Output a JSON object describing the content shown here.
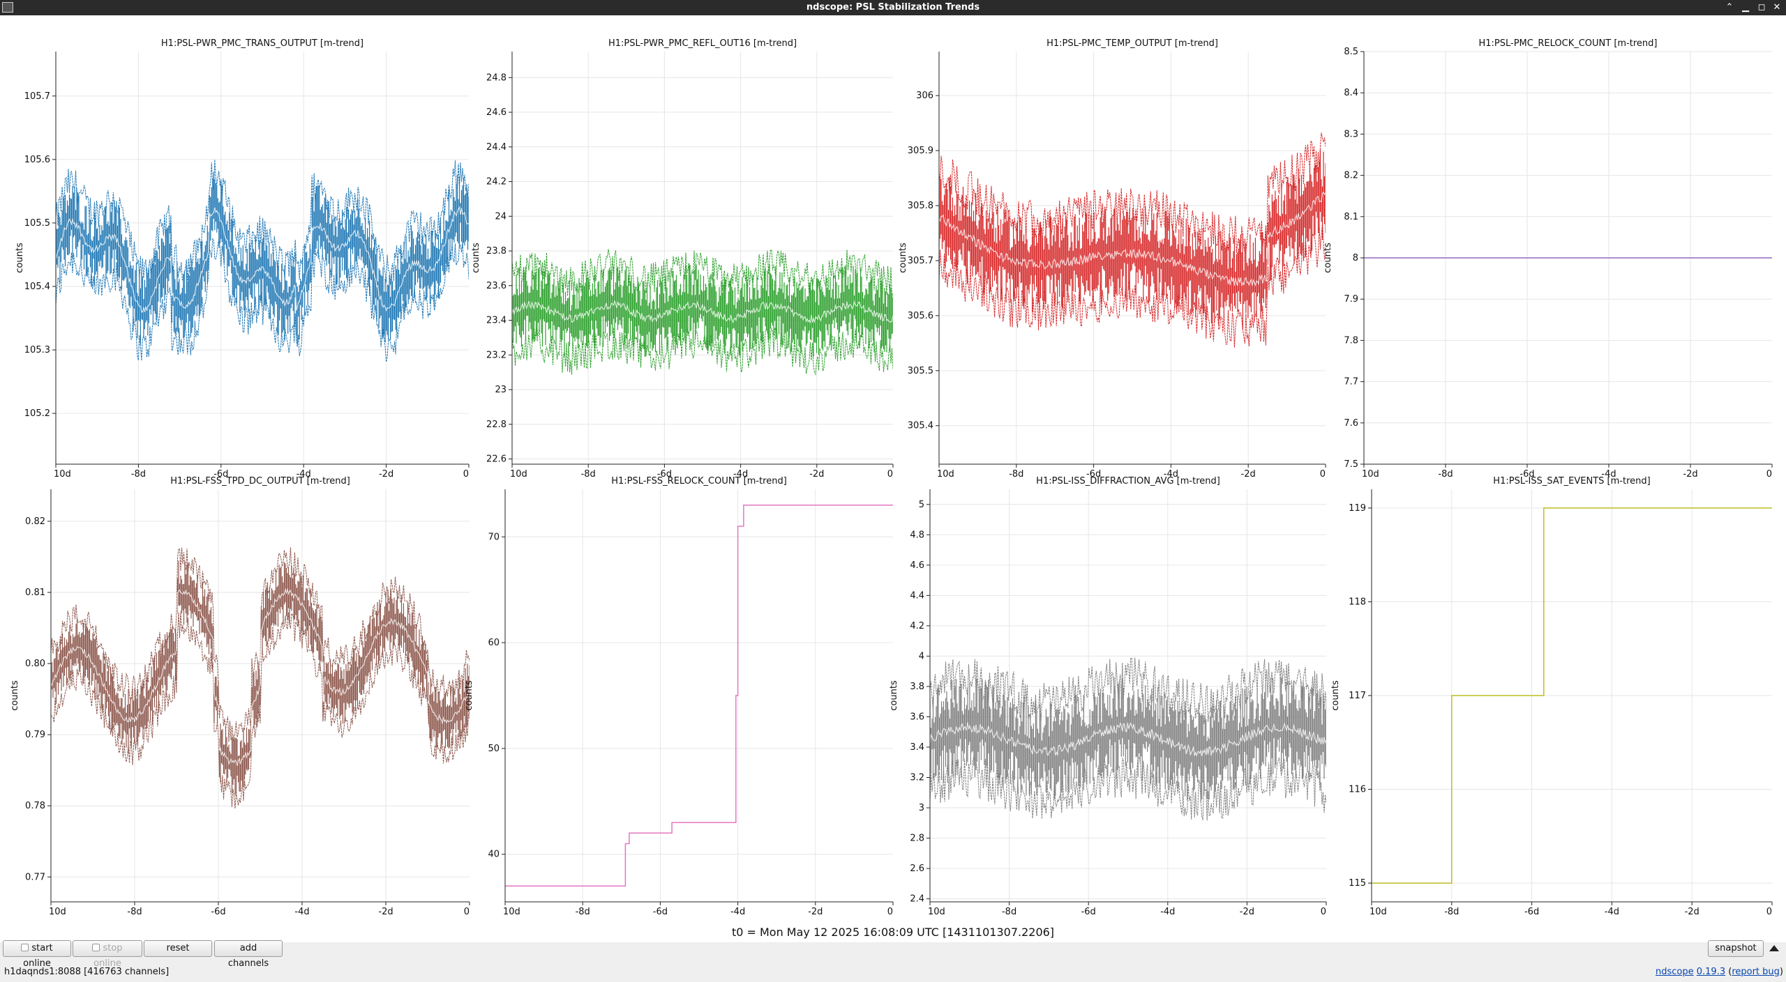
{
  "window": {
    "title": "ndscope: PSL Stabilization Trends",
    "controls": [
      "minimize-icon",
      "maximize-icon",
      "restore-icon",
      "close-icon"
    ]
  },
  "colors": {
    "blue": "#1f77b4",
    "green": "#2ca02c",
    "red": "#d62728",
    "purple": "#9467bd",
    "brown": "#8c564b",
    "pink": "#e377c2",
    "gray": "#7f7f7f",
    "olive": "#bcbd22"
  },
  "ylabel": "counts",
  "plots": [
    {
      "title": "H1:PSL-PWR_PMC_TRANS_OUTPUT [m-trend]",
      "color": "blue",
      "type": "band",
      "xticks": [
        "10d",
        "-8d",
        "-6d",
        "-4d",
        "-2d",
        "0"
      ],
      "xlim": [
        -10,
        0
      ],
      "ylim": [
        105.12,
        105.77
      ],
      "yticks": [
        "105.2",
        "105.3",
        "105.4",
        "105.5",
        "105.6",
        "105.7"
      ],
      "ytickvals": [
        105.2,
        105.3,
        105.4,
        105.5,
        105.6,
        105.7
      ]
    },
    {
      "title": "H1:PSL-PWR_PMC_REFL_OUT16 [m-trend]",
      "color": "green",
      "type": "band",
      "xticks": [
        "10d",
        "-8d",
        "-6d",
        "-4d",
        "-2d",
        "0"
      ],
      "xlim": [
        -10,
        0
      ],
      "ylim": [
        22.57,
        24.95
      ],
      "yticks": [
        "22.6",
        "22.8",
        "23",
        "23.2",
        "23.4",
        "23.6",
        "23.8",
        "24",
        "24.2",
        "24.4",
        "24.6",
        "24.8"
      ],
      "ytickvals": [
        22.6,
        22.8,
        23,
        23.2,
        23.4,
        23.6,
        23.8,
        24,
        24.2,
        24.4,
        24.6,
        24.8
      ]
    },
    {
      "title": "H1:PSL-PMC_TEMP_OUTPUT [m-trend]",
      "color": "red",
      "type": "band",
      "xticks": [
        "10d",
        "-8d",
        "-6d",
        "-4d",
        "-2d",
        "0"
      ],
      "xlim": [
        -10,
        0
      ],
      "ylim": [
        305.33,
        306.08
      ],
      "yticks": [
        "305.4",
        "305.5",
        "305.6",
        "305.7",
        "305.8",
        "305.9",
        "306"
      ],
      "ytickvals": [
        305.4,
        305.5,
        305.6,
        305.7,
        305.8,
        305.9,
        306
      ]
    },
    {
      "title": "H1:PSL-PMC_RELOCK_COUNT [m-trend]",
      "color": "purple",
      "type": "step",
      "xticks": [
        "10d",
        "-8d",
        "-6d",
        "-4d",
        "-2d",
        "0"
      ],
      "xlim": [
        -10,
        0
      ],
      "ylim": [
        7.5,
        8.5
      ],
      "yticks": [
        "7.5",
        "7.6",
        "7.7",
        "7.8",
        "7.9",
        "8",
        "8.1",
        "8.2",
        "8.3",
        "8.4",
        "8.5"
      ],
      "ytickvals": [
        7.5,
        7.6,
        7.7,
        7.8,
        7.9,
        8,
        8.1,
        8.2,
        8.3,
        8.4,
        8.5
      ],
      "steps": [
        [
          -10,
          8
        ],
        [
          0,
          8
        ]
      ]
    },
    {
      "title": "H1:PSL-FSS_TPD_DC_OUTPUT [m-trend]",
      "color": "brown",
      "type": "band",
      "xticks": [
        "10d",
        "-8d",
        "-6d",
        "-4d",
        "-2d",
        "0"
      ],
      "xlim": [
        -10,
        0
      ],
      "ylim": [
        0.7665,
        0.8245
      ],
      "yticks": [
        "0.77",
        "0.78",
        "0.79",
        "0.80",
        "0.81",
        "0.82"
      ],
      "ytickvals": [
        0.77,
        0.78,
        0.79,
        0.8,
        0.81,
        0.82
      ]
    },
    {
      "title": "H1:PSL-FSS_RELOCK_COUNT [m-trend]",
      "color": "pink",
      "type": "step",
      "xticks": [
        "10d",
        "-8d",
        "-6d",
        "-4d",
        "-2d",
        "0"
      ],
      "xlim": [
        -10,
        0
      ],
      "ylim": [
        35.5,
        74.5
      ],
      "yticks": [
        "40",
        "50",
        "60",
        "70"
      ],
      "ytickvals": [
        40,
        50,
        60,
        70
      ],
      "steps": [
        [
          -10,
          37
        ],
        [
          -6.9,
          41
        ],
        [
          -6.8,
          42
        ],
        [
          -5.7,
          43
        ],
        [
          -4.05,
          55
        ],
        [
          -4.0,
          71
        ],
        [
          -3.85,
          73
        ],
        [
          0,
          73
        ]
      ]
    },
    {
      "title": "H1:PSL-ISS_DIFFRACTION_AVG [m-trend]",
      "color": "gray",
      "type": "band",
      "xticks": [
        "10d",
        "-8d",
        "-6d",
        "-4d",
        "-2d",
        "0"
      ],
      "xlim": [
        -10,
        0
      ],
      "ylim": [
        2.38,
        5.1
      ],
      "yticks": [
        "2.4",
        "2.6",
        "2.8",
        "3",
        "3.2",
        "3.4",
        "3.6",
        "3.8",
        "4",
        "4.2",
        "4.4",
        "4.6",
        "4.8",
        "5"
      ],
      "ytickvals": [
        2.4,
        2.6,
        2.8,
        3,
        3.2,
        3.4,
        3.6,
        3.8,
        4,
        4.2,
        4.4,
        4.6,
        4.8,
        5
      ]
    },
    {
      "title": "H1:PSL-ISS_SAT_EVENTS [m-trend]",
      "color": "olive",
      "type": "step",
      "xticks": [
        "10d",
        "-8d",
        "-6d",
        "-4d",
        "-2d",
        "0"
      ],
      "xlim": [
        -10,
        0
      ],
      "ylim": [
        114.8,
        119.2
      ],
      "yticks": [
        "115",
        "116",
        "117",
        "118",
        "119"
      ],
      "ytickvals": [
        115,
        116,
        117,
        118,
        119
      ],
      "steps": [
        [
          -10,
          115
        ],
        [
          -8.0,
          117
        ],
        [
          -5.7,
          119
        ],
        [
          0,
          119
        ]
      ]
    }
  ],
  "t0_label": "t0 = Mon May 12 2025 16:08:09 UTC [1431101307.2206]",
  "buttons": {
    "start_online": "start online",
    "stop_online": "stop online",
    "reset": "reset",
    "add_channels": "add channels",
    "snapshot": "snapshot"
  },
  "status": {
    "server": "h1daqnds1:8088  [416763 channels]",
    "app_link": "ndscope",
    "version": "0.19.3",
    "report_bug": "report bug"
  }
}
